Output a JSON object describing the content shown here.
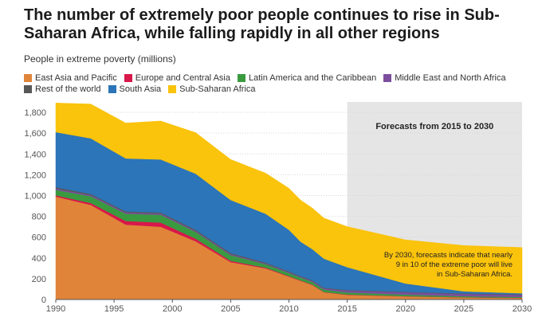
{
  "chart_data": {
    "type": "area",
    "stacked": true,
    "title": "The number of extremely poor people continues to rise in Sub-Saharan Africa, while falling rapidly in all other regions",
    "subtitle": "People in extreme poverty (millions)",
    "xlabel": "",
    "ylabel": "",
    "xlim": [
      1990,
      2030
    ],
    "ylim": [
      0,
      1900
    ],
    "x_ticks": [
      1990,
      1995,
      2000,
      2005,
      2010,
      2015,
      2020,
      2025,
      2030
    ],
    "y_ticks": [
      0,
      200,
      400,
      600,
      800,
      1000,
      1200,
      1400,
      1600,
      1800
    ],
    "y_tick_labels": [
      "0",
      "200",
      "400",
      "600",
      "800",
      "1,000",
      "1,200",
      "1,400",
      "1,600",
      "1,800"
    ],
    "grid": true,
    "legend_position": "top",
    "x": [
      1990,
      1993,
      1996,
      1999,
      2002,
      2005,
      2008,
      2010,
      2011,
      2012,
      2013,
      2015,
      2020,
      2025,
      2030
    ],
    "series": [
      {
        "name": "East Asia and Pacific",
        "color": "#e0843a",
        "values": [
          990,
          910,
          720,
          700,
          560,
          360,
          300,
          220,
          180,
          140,
          70,
          45,
          30,
          20,
          15
        ]
      },
      {
        "name": "Europe and Central Asia",
        "color": "#d8174b",
        "values": [
          12,
          18,
          35,
          40,
          25,
          12,
          7,
          5,
          4,
          4,
          3,
          3,
          2,
          2,
          2
        ]
      },
      {
        "name": "Latin America and the Caribbean",
        "color": "#3a9a40",
        "values": [
          52,
          65,
          70,
          75,
          65,
          55,
          32,
          30,
          28,
          25,
          23,
          20,
          15,
          10,
          8
        ]
      },
      {
        "name": "Middle East and North Africa",
        "color": "#7b4f9d",
        "values": [
          14,
          12,
          12,
          12,
          10,
          10,
          8,
          8,
          8,
          10,
          12,
          18,
          22,
          22,
          20
        ]
      },
      {
        "name": "Rest of the world",
        "color": "#575757",
        "values": [
          12,
          10,
          10,
          10,
          10,
          10,
          8,
          7,
          6,
          6,
          5,
          5,
          5,
          5,
          5
        ]
      },
      {
        "name": "South Asia",
        "color": "#2b75b8",
        "values": [
          530,
          535,
          510,
          510,
          540,
          510,
          470,
          400,
          330,
          300,
          280,
          220,
          80,
          20,
          10
        ]
      },
      {
        "name": "Sub-Saharan Africa",
        "color": "#fac30c",
        "values": [
          280,
          330,
          340,
          370,
          395,
          390,
          390,
          400,
          400,
          395,
          390,
          390,
          420,
          440,
          440
        ]
      }
    ],
    "forecast": {
      "start": 2015,
      "end": 2030,
      "label": "Forecasts from 2015 to 2030",
      "color": "#e5e5e5",
      "note": [
        "By 2030, forecasts indicate that nearly",
        "9 in 10 of the extreme poor will live",
        "in Sub-Saharan Africa."
      ]
    }
  }
}
